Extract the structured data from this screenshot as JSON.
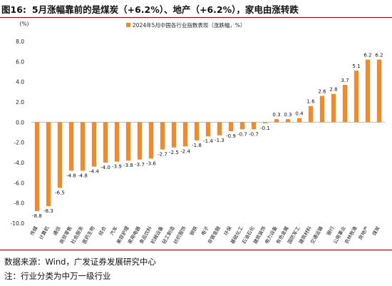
{
  "header": {
    "figure_number": "图16:",
    "figure_title": "5月涨幅靠前的是煤炭（+6.2%）、地产（+6.2%），家电由涨转跌"
  },
  "footer": {
    "source": "数据来源：Wind，广发证券发展研究中心",
    "note": "注：行业分类为中万一级行业"
  },
  "chart_data": {
    "type": "bar",
    "title": "",
    "ylabel": "(%)",
    "xlabel": "",
    "ylim": [
      -10.0,
      8.0
    ],
    "yticks": [
      "-10.0",
      "-8.0",
      "-6.0",
      "-4.0",
      "-2.0",
      "0.0",
      "2.0",
      "4.0",
      "6.0",
      "8.0"
    ],
    "grid": false,
    "legend_position": "top-center",
    "bar_color": "#f08a2c",
    "categories": [
      "传媒",
      "计算机",
      "通信",
      "商贸零售",
      "社会服务",
      "医药生物",
      "综合",
      "汽车",
      "美容护理",
      "家用电器",
      "食品饮料",
      "机械设备",
      "轻工制造",
      "纺织服饰",
      "钢铁",
      "电子",
      "非银金融",
      "环保",
      "基础化工",
      "石油石化",
      "建筑装饰",
      "电力设备",
      "有色金属",
      "国防军工",
      "建筑材料",
      "交通运输",
      "银行",
      "公用事业",
      "农林牧渔",
      "房地产",
      "煤炭"
    ],
    "series": [
      {
        "name": "2024年5月中国各行业指数表现（涨跌幅，%）",
        "values": [
          -8.8,
          -8.3,
          -6.5,
          -4.8,
          -4.8,
          -4.4,
          -4.0,
          -3.9,
          -3.8,
          -3.7,
          -3.6,
          -2.7,
          -2.5,
          -2.4,
          -1.8,
          -1.4,
          -1.3,
          -0.9,
          -0.7,
          -0.7,
          -0.1,
          0.3,
          0.3,
          0.4,
          1.6,
          2.6,
          2.8,
          3.7,
          5.1,
          6.2,
          6.2
        ],
        "labels": [
          "-8.8",
          "-8.3",
          "-6.5",
          "-4.8",
          "-4.8",
          "-4.4",
          "-4.0",
          "-3.9",
          "-3.8",
          "-3.7",
          "-3.6",
          "-2.7",
          "-2.5",
          "-2.4",
          "-1.8",
          "-1.4",
          "-1.3",
          "-0.9",
          "-0.7",
          "-0.7",
          "-0.1",
          "0.3",
          "0.3",
          "0.4",
          "1.6",
          "2.6",
          "2.8",
          "3.7",
          "5.1",
          "6.2",
          "6.2"
        ]
      }
    ]
  }
}
